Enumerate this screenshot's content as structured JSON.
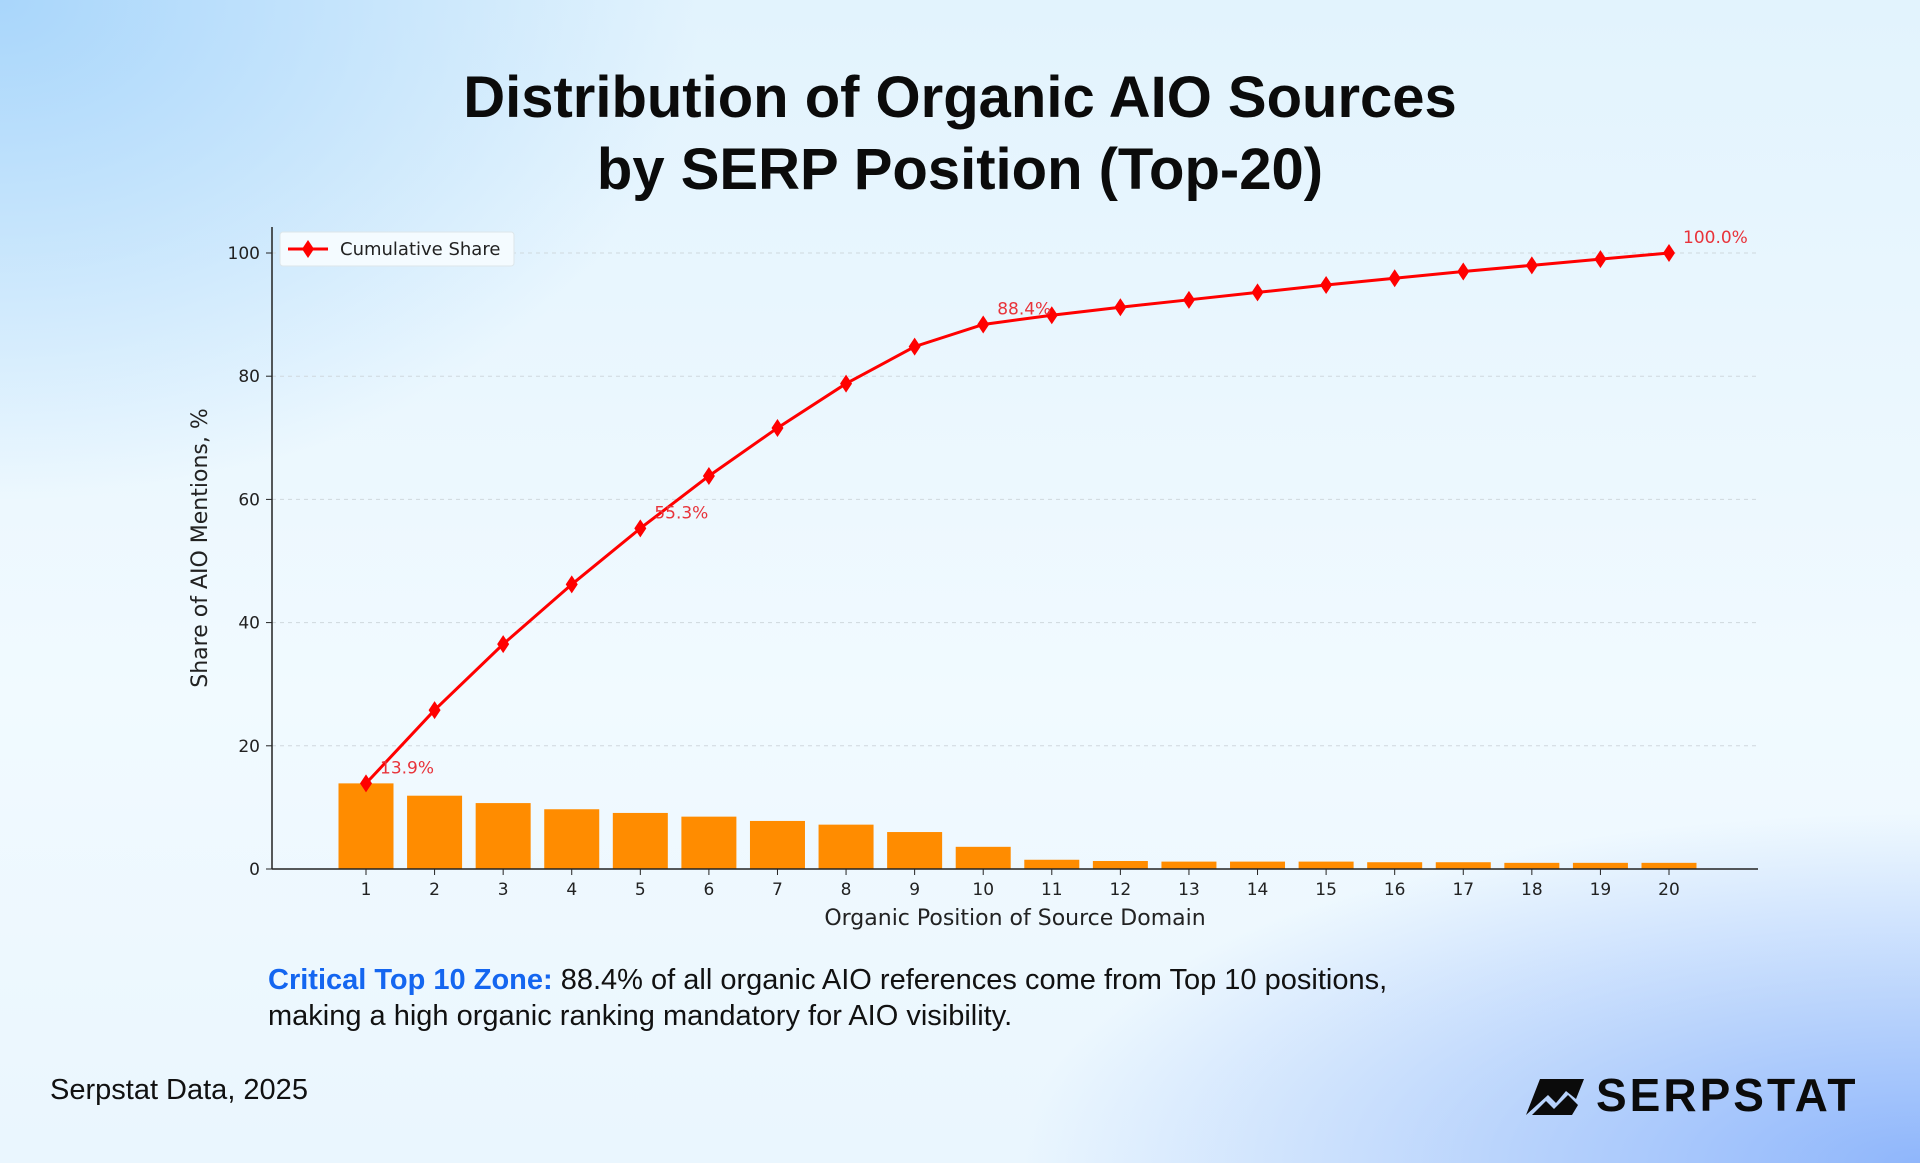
{
  "title_line1": "Distribution of Organic AIO Sources",
  "title_line2": "by SERP Position (Top-20)",
  "note": {
    "highlight": "Critical Top 10 Zone:",
    "line1": " 88.4% of all organic AIO references come from Top 10 positions,",
    "line2": "making a high organic ranking mandatory for AIO visibility."
  },
  "source": "Serpstat Data, 2025",
  "logo_text": "SERPSTAT",
  "chart_data": {
    "type": "bar+line",
    "xlabel": "Organic Position of Source Domain",
    "ylabel": "Share of AIO Mentions, %",
    "ylim": [
      0,
      105
    ],
    "yticks": [
      0,
      20,
      40,
      60,
      80,
      100
    ],
    "grid": "horizontal dashed",
    "legend": "top-left",
    "categories": [
      "1",
      "2",
      "3",
      "4",
      "5",
      "6",
      "7",
      "8",
      "9",
      "10",
      "11",
      "12",
      "13",
      "14",
      "15",
      "16",
      "17",
      "18",
      "19",
      "20"
    ],
    "series": [
      {
        "type": "bar",
        "color": "#ff8c00",
        "values": [
          13.9,
          11.9,
          10.7,
          9.7,
          9.1,
          8.5,
          7.8,
          7.2,
          6.0,
          3.6,
          1.5,
          1.3,
          1.2,
          1.2,
          1.2,
          1.1,
          1.1,
          1.0,
          1.0,
          1.0
        ]
      },
      {
        "type": "line",
        "name": "Cumulative Share",
        "color": "#ff0000",
        "marker": "diamond",
        "values": [
          13.9,
          25.8,
          36.5,
          46.2,
          55.3,
          63.8,
          71.6,
          78.8,
          84.8,
          88.4,
          89.9,
          91.2,
          92.4,
          93.6,
          94.8,
          95.9,
          97.0,
          98.0,
          99.0,
          100.0
        ]
      }
    ],
    "annotations": [
      {
        "index": 0,
        "text": "13.9%"
      },
      {
        "index": 4,
        "text": "55.3%"
      },
      {
        "index": 9,
        "text": "88.4%"
      },
      {
        "index": 19,
        "text": "100.0%"
      }
    ]
  }
}
